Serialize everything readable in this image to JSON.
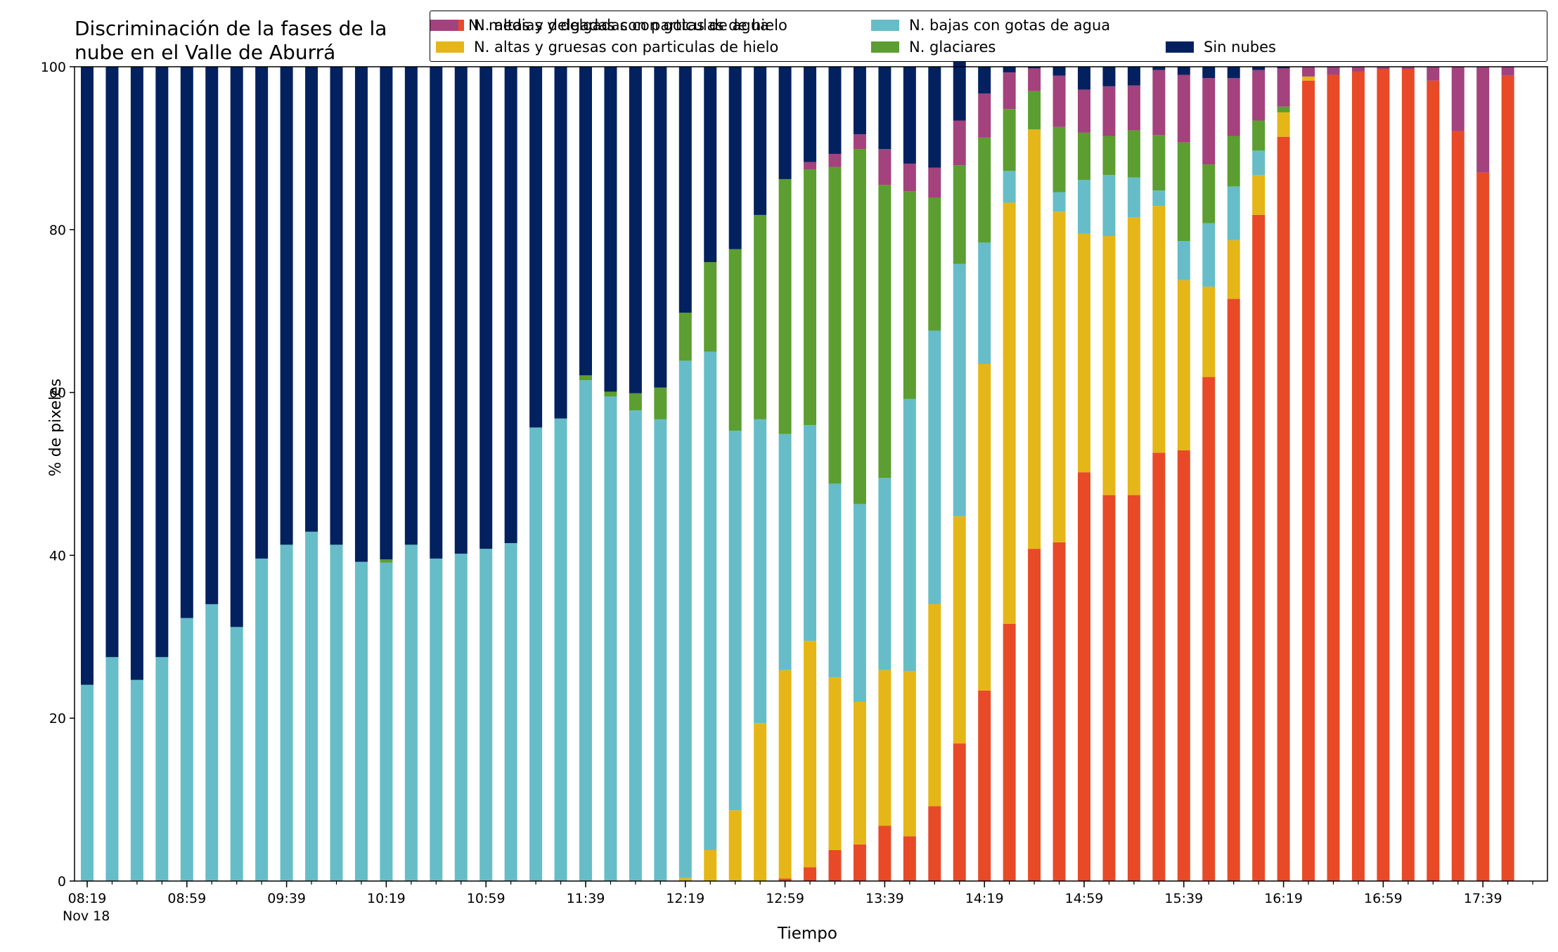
{
  "chart_data": {
    "type": "bar",
    "stacked": true,
    "title": "Discriminación de la fases de la\nnube en el Valle de Aburrá",
    "xlabel": "Tiempo",
    "ylabel": "% de pixeles",
    "ylim": [
      0,
      100
    ],
    "yticks": [
      0,
      20,
      40,
      60,
      80,
      100
    ],
    "x_tick_labels": [
      "08:19\nNov 18",
      "08:59",
      "09:39",
      "10:19",
      "10:59",
      "11:39",
      "12:19",
      "12:59",
      "13:39",
      "14:19",
      "14:59",
      "15:39",
      "16:19",
      "16:59",
      "17:39"
    ],
    "legend_position": "top-right",
    "categories": [
      "08:19",
      "08:29",
      "08:39",
      "08:49",
      "08:59",
      "09:09",
      "09:19",
      "09:29",
      "09:39",
      "09:49",
      "09:59",
      "10:09",
      "10:19",
      "10:29",
      "10:39",
      "10:49",
      "10:59",
      "11:09",
      "11:19",
      "11:29",
      "11:39",
      "11:49",
      "11:59",
      "12:09",
      "12:19",
      "12:29",
      "12:39",
      "12:49",
      "12:59",
      "13:09",
      "13:19",
      "13:29",
      "13:39",
      "13:49",
      "13:59",
      "14:09",
      "14:19",
      "14:29",
      "14:39",
      "14:49",
      "14:59",
      "15:09",
      "15:19",
      "15:29",
      "15:39",
      "15:49",
      "15:59",
      "16:09",
      "16:19",
      "16:29",
      "16:39",
      "16:49",
      "16:59",
      "17:09",
      "17:19",
      "17:29",
      "17:39",
      "17:49"
    ],
    "series": [
      {
        "name": "N. altas y delgadas con particulas de hielo",
        "color": "#e84a27",
        "values": [
          0,
          0,
          0,
          0,
          0,
          0,
          0,
          0,
          0,
          0,
          0,
          0,
          0,
          0,
          0,
          0,
          0,
          0,
          0,
          0,
          0,
          0,
          0,
          0,
          0,
          0,
          0,
          0,
          0.3,
          1.7,
          3.8,
          4.5,
          6.8,
          5.5,
          9.2,
          16.9,
          23.4,
          31.6,
          40.8,
          41.6,
          50.2,
          47.4,
          47.4,
          52.6,
          52.9,
          61.9,
          71.5,
          81.8,
          91.4,
          98.3,
          99,
          99.4,
          99.7,
          99.7,
          98.3,
          92.1,
          87,
          98.9
        ]
      },
      {
        "name": "N. altas y gruesas con particulas de hielo",
        "color": "#e5b617",
        "values": [
          0,
          0,
          0,
          0,
          0,
          0,
          0,
          0,
          0,
          0,
          0,
          0,
          0,
          0,
          0,
          0,
          0,
          0,
          0,
          0,
          0,
          0,
          0,
          0,
          0.4,
          3.8,
          8.7,
          19.4,
          25.6,
          27.8,
          21.2,
          17.5,
          19.1,
          20.3,
          24.8,
          27.9,
          40.1,
          51.7,
          51.5,
          40.6,
          29.3,
          31.8,
          34.1,
          30.3,
          20.9,
          11.1,
          7.2,
          4.9,
          3,
          0.5,
          0,
          0,
          0,
          0,
          0,
          0,
          0,
          0
        ]
      },
      {
        "name": "N. bajas con gotas de agua",
        "color": "#66bdc8",
        "values": [
          24.1,
          27.5,
          24.7,
          27.5,
          32.3,
          34,
          31.2,
          39.6,
          41.3,
          42.9,
          41.3,
          39.2,
          39.1,
          41.3,
          39.6,
          40.2,
          40.8,
          41.5,
          55.7,
          56.8,
          61.5,
          59.5,
          57.8,
          56.7,
          63.5,
          61.2,
          46.6,
          37.3,
          29,
          26.5,
          23.8,
          24.3,
          23.6,
          33.4,
          33.6,
          31,
          14.9,
          3.9,
          0,
          2.4,
          6.6,
          7.5,
          4.9,
          1.9,
          4.8,
          7.8,
          6.6,
          3,
          0,
          0,
          0,
          0,
          0,
          0,
          0,
          0,
          0,
          0
        ]
      },
      {
        "name": "N. glaciares",
        "color": "#5c9e31",
        "values": [
          0,
          0,
          0,
          0,
          0,
          0,
          0,
          0,
          0,
          0,
          0,
          0,
          0.4,
          0,
          0,
          0,
          0,
          0,
          0,
          0,
          0.6,
          0.6,
          2.1,
          3.9,
          5.9,
          11,
          22.3,
          25.1,
          31.3,
          31.4,
          38.9,
          43.6,
          36,
          25.5,
          16.3,
          12.1,
          12.9,
          7.6,
          4.7,
          8,
          5.8,
          4.8,
          5.8,
          6.8,
          12.1,
          7.2,
          6.2,
          3.7,
          0.7,
          0,
          0,
          0,
          0,
          0,
          0,
          0,
          0,
          0
        ]
      },
      {
        "name": "N. medias y delgadas con gotas de agua",
        "color": "#a3427d",
        "values": [
          0,
          0,
          0,
          0,
          0,
          0,
          0,
          0,
          0,
          0,
          0,
          0,
          0,
          0,
          0,
          0,
          0,
          0,
          0,
          0,
          0,
          0,
          0,
          0,
          0,
          0,
          0,
          0,
          0,
          0.9,
          1.6,
          1.8,
          4.4,
          3.4,
          3.7,
          5.5,
          5.4,
          4.5,
          2.8,
          6.3,
          5.3,
          6.1,
          5.5,
          8,
          8.3,
          10.6,
          7.1,
          6.2,
          4.7,
          1.2,
          1,
          0.6,
          0.3,
          0.3,
          1.7,
          7.9,
          13,
          1.1
        ]
      },
      {
        "name": "Sin nubes",
        "color": "#03215f",
        "values": [
          75.9,
          72.5,
          75.3,
          72.5,
          67.7,
          66,
          68.8,
          60.4,
          58.7,
          57.1,
          58.7,
          60.8,
          60.5,
          58.7,
          60.4,
          59.8,
          59.2,
          58.5,
          44.3,
          43.2,
          37.9,
          39.9,
          40.1,
          39.4,
          30.2,
          24,
          22.4,
          18.2,
          13.8,
          11.7,
          10.7,
          8.3,
          10.1,
          11.9,
          12.4,
          7.5,
          3.3,
          0.7,
          0.2,
          1.1,
          2.8,
          2.4,
          2.3,
          0.4,
          1,
          1.4,
          1.4,
          0.4,
          0.2,
          0,
          0,
          0,
          0,
          0,
          0,
          0,
          0,
          0
        ]
      }
    ]
  }
}
